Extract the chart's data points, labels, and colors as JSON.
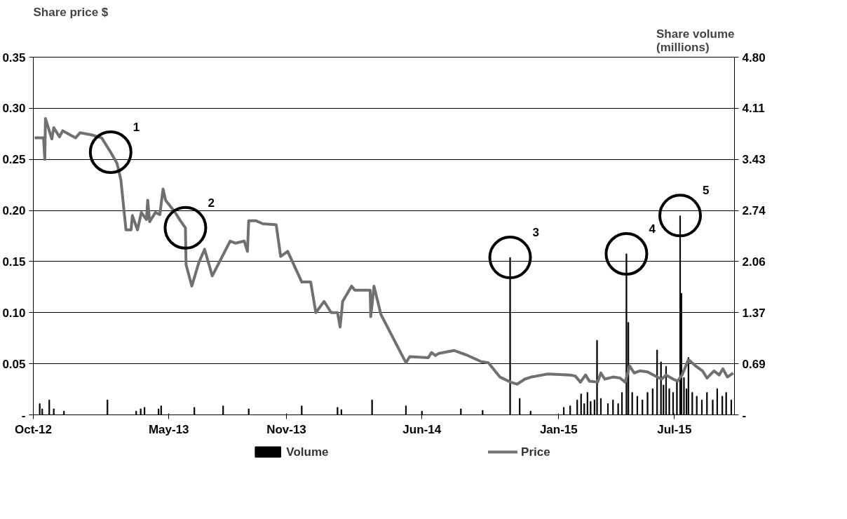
{
  "chart_data": {
    "type": "line",
    "ylabel": "Share price $",
    "y2label": "Share volume\n(millions)",
    "xlim": [
      "2012-10-01",
      "2015-10-03"
    ],
    "xticks": [
      {
        "value": "2012-10-01",
        "label": "Oct-12"
      },
      {
        "value": "2013-05-01",
        "label": "May-13"
      },
      {
        "value": "2013-11-01",
        "label": "Nov-13"
      },
      {
        "value": "2014-06-01",
        "label": "Jun-14"
      },
      {
        "value": "2015-01-01",
        "label": "Jan-15"
      },
      {
        "value": "2015-07-01",
        "label": "Jul-15"
      }
    ],
    "ylim": [
      0,
      0.35
    ],
    "yticks": [
      {
        "value": 0,
        "label": "-"
      },
      0.05,
      {
        "value": 0.1,
        "label": "0.10"
      },
      0.15,
      {
        "value": 0.2,
        "label": "0.20"
      },
      0.25,
      {
        "value": 0.3,
        "label": "0.30"
      },
      0.35
    ],
    "y2lim": [
      0,
      4.8
    ],
    "y2ticks": [
      {
        "value": 0,
        "label": "-"
      },
      {
        "value": 0.6857,
        "label": "0.69"
      },
      {
        "value": 1.3714,
        "label": "1.37"
      },
      {
        "value": 2.0571,
        "label": "2.06"
      },
      {
        "value": 2.7429,
        "label": "2.74"
      },
      {
        "value": 3.4286,
        "label": "3.43"
      },
      {
        "value": 4.1143,
        "label": "4.11"
      },
      {
        "value": 4.8,
        "label": "4.80"
      }
    ],
    "grid": "y",
    "legend": "bottom",
    "series": [
      {
        "name": "Volume",
        "type": "bar",
        "axis": "y2",
        "color": "#000000",
        "x": [
          "2012-10-11",
          "2012-10-15",
          "2012-10-26",
          "2012-11-02",
          "2012-11-18",
          "2013-01-25",
          "2013-03-11",
          "2013-03-18",
          "2013-03-24",
          "2013-04-15",
          "2013-04-19",
          "2013-06-10",
          "2013-07-25",
          "2013-09-03",
          "2013-11-25",
          "2014-01-20",
          "2014-01-26",
          "2014-03-15",
          "2014-05-07",
          "2014-06-01",
          "2014-08-01",
          "2014-09-04",
          "2014-10-17",
          "2014-11-01",
          "2014-11-18",
          "2015-01-09",
          "2015-01-19",
          "2015-01-30",
          "2015-02-05",
          "2015-02-10",
          "2015-02-15",
          "2015-02-20",
          "2015-02-26",
          "2015-03-02",
          "2015-03-08",
          "2015-03-19",
          "2015-03-27",
          "2015-04-04",
          "2015-04-10",
          "2015-04-17",
          "2015-04-20",
          "2015-04-26",
          "2015-05-04",
          "2015-05-12",
          "2015-05-20",
          "2015-05-28",
          "2015-06-04",
          "2015-06-10",
          "2015-06-14",
          "2015-06-18",
          "2015-06-23",
          "2015-06-29",
          "2015-07-05",
          "2015-07-10",
          "2015-07-12",
          "2015-07-16",
          "2015-07-20",
          "2015-07-23",
          "2015-07-29",
          "2015-08-05",
          "2015-08-13",
          "2015-08-21",
          "2015-08-30",
          "2015-09-06",
          "2015-09-14",
          "2015-09-20",
          "2015-09-28"
        ],
        "values": [
          0.15,
          0.08,
          0.2,
          0.08,
          0.05,
          0.2,
          0.05,
          0.08,
          0.1,
          0.08,
          0.12,
          0.1,
          0.12,
          0.08,
          0.12,
          0.1,
          0.07,
          0.2,
          0.12,
          0.05,
          0.08,
          0.06,
          2.11,
          0.22,
          0.05,
          0.1,
          0.12,
          0.2,
          0.28,
          0.15,
          0.3,
          0.18,
          0.2,
          1.0,
          0.22,
          0.15,
          0.2,
          0.15,
          0.3,
          2.16,
          1.24,
          0.3,
          0.25,
          0.2,
          0.3,
          0.35,
          0.87,
          0.71,
          0.4,
          0.65,
          0.35,
          0.3,
          0.45,
          2.67,
          1.63,
          0.5,
          0.35,
          0.77,
          0.3,
          0.25,
          0.2,
          0.3,
          0.2,
          0.35,
          0.25,
          0.3,
          0.2
        ]
      },
      {
        "name": "Price",
        "color": "#707070",
        "x": [
          "2012-10-03",
          "2012-10-17",
          "2012-10-19",
          "2012-10-20",
          "2012-10-30",
          "2012-11-02",
          "2012-11-11",
          "2012-11-16",
          "2012-12-06",
          "2012-12-13",
          "2012-12-31",
          "2013-01-16",
          "2013-01-30",
          "2013-02-09",
          "2013-02-15",
          "2013-02-23",
          "2013-03-03",
          "2013-03-05",
          "2013-03-13",
          "2013-03-19",
          "2013-03-27",
          "2013-03-29",
          "2013-04-01",
          "2013-04-10",
          "2013-04-17",
          "2013-04-22",
          "2013-04-26",
          "2013-05-11",
          "2013-05-19",
          "2013-05-27",
          "2013-05-28",
          "2013-06-06",
          "2013-06-17",
          "2013-06-26",
          "2013-07-08",
          "2013-08-05",
          "2013-08-13",
          "2013-08-27",
          "2013-09-01",
          "2013-09-03",
          "2013-09-14",
          "2013-09-25",
          "2013-10-16",
          "2013-10-23",
          "2013-11-03",
          "2013-11-25",
          "2013-12-09",
          "2013-12-17",
          "2013-12-30",
          "2014-01-10",
          "2014-01-20",
          "2014-01-24",
          "2014-01-28",
          "2014-02-11",
          "2014-02-16",
          "2014-03-12",
          "2014-03-13",
          "2014-03-18",
          "2014-03-29",
          "2014-05-07",
          "2014-05-13",
          "2014-06-11",
          "2014-06-16",
          "2014-06-22",
          "2014-06-27",
          "2014-07-21",
          "2014-08-12",
          "2014-09-02",
          "2014-09-13",
          "2014-10-01",
          "2014-10-18",
          "2014-10-28",
          "2014-11-09",
          "2014-11-19",
          "2014-12-15",
          "2015-01-19",
          "2015-01-27",
          "2015-02-04",
          "2015-02-12",
          "2015-02-18",
          "2015-03-03",
          "2015-03-08",
          "2015-03-14",
          "2015-03-27",
          "2015-04-07",
          "2015-04-15",
          "2015-04-22",
          "2015-04-29",
          "2015-05-08",
          "2015-05-20",
          "2015-06-04",
          "2015-06-11",
          "2015-06-18",
          "2015-06-29",
          "2015-07-06",
          "2015-07-13",
          "2015-07-23",
          "2015-08-03",
          "2015-08-14",
          "2015-08-21",
          "2015-09-01",
          "2015-09-09",
          "2015-09-15",
          "2015-09-22",
          "2015-10-01"
        ],
        "values": [
          0.271,
          0.271,
          0.25,
          0.29,
          0.27,
          0.281,
          0.272,
          0.278,
          0.271,
          0.276,
          0.274,
          0.271,
          0.257,
          0.246,
          0.23,
          0.181,
          0.181,
          0.195,
          0.181,
          0.198,
          0.191,
          0.21,
          0.189,
          0.198,
          0.196,
          0.221,
          0.21,
          0.198,
          0.19,
          0.183,
          0.147,
          0.126,
          0.149,
          0.162,
          0.136,
          0.17,
          0.168,
          0.17,
          0.16,
          0.19,
          0.19,
          0.187,
          0.186,
          0.155,
          0.16,
          0.13,
          0.13,
          0.1,
          0.111,
          0.1,
          0.1,
          0.086,
          0.111,
          0.126,
          0.122,
          0.122,
          0.096,
          0.126,
          0.098,
          0.051,
          0.057,
          0.056,
          0.061,
          0.058,
          0.06,
          0.063,
          0.058,
          0.052,
          0.051,
          0.037,
          0.032,
          0.03,
          0.035,
          0.037,
          0.04,
          0.039,
          0.038,
          0.032,
          0.039,
          0.033,
          0.032,
          0.041,
          0.035,
          0.037,
          0.036,
          0.032,
          0.048,
          0.041,
          0.043,
          0.042,
          0.037,
          0.035,
          0.039,
          0.035,
          0.033,
          0.039,
          0.054,
          0.048,
          0.043,
          0.036,
          0.043,
          0.039,
          0.045,
          0.037,
          0.041
        ]
      }
    ],
    "annotations": [
      {
        "text": "1",
        "x": "2013-01-30",
        "y": 0.257
      },
      {
        "text": "2",
        "x": "2013-05-27",
        "y": 0.183
      },
      {
        "text": "3",
        "x": "2014-10-17",
        "y": 0.154
      },
      {
        "text": "4",
        "x": "2015-04-17",
        "y": 0.1575
      },
      {
        "text": "5",
        "x": "2015-07-10",
        "y": 0.195
      }
    ]
  }
}
